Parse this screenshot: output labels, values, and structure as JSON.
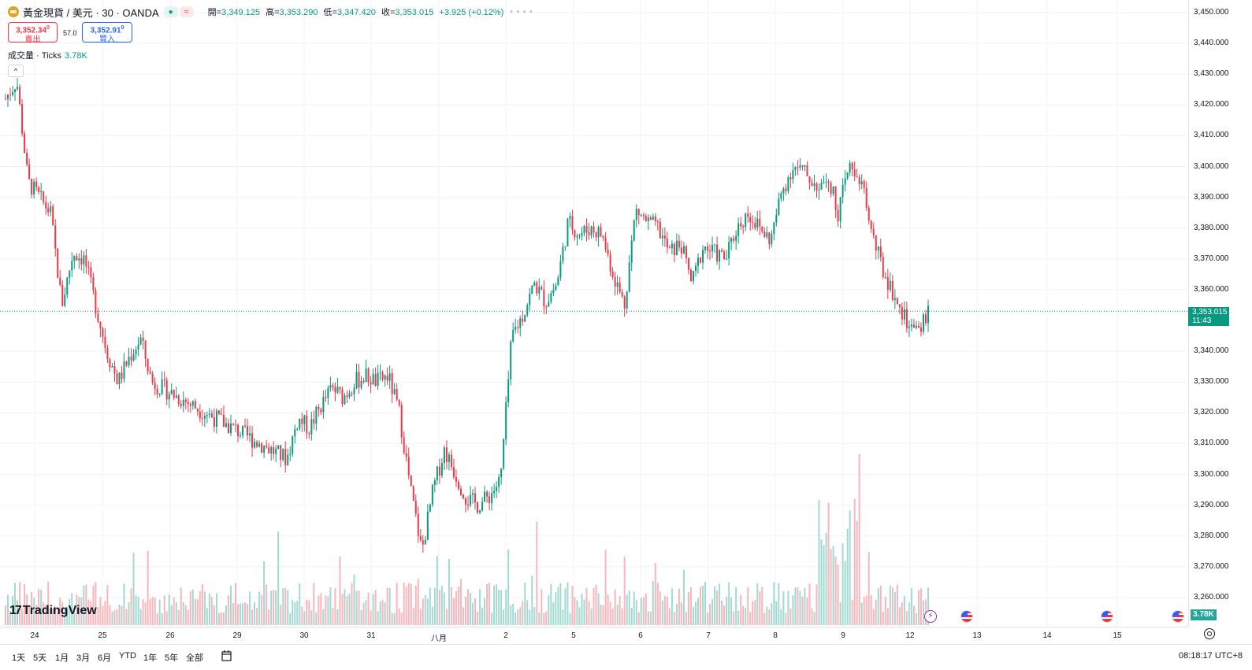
{
  "header": {
    "symbol": "黃金現貨 / 美元 · 30 · OANDA",
    "ohlc": [
      {
        "label": "開=",
        "value": "3,349.125"
      },
      {
        "label": "高=",
        "value": "3,353.290"
      },
      {
        "label": "低=",
        "value": "3,347.420"
      },
      {
        "label": "收=",
        "value": "3,353.015"
      }
    ],
    "change": "+3.925 (+0.12%)",
    "pill_green": "●",
    "pill_red": "≈",
    "more": "• • • •"
  },
  "trade": {
    "sell_price": "3,352.34",
    "sell_sup": "0",
    "sell_label": "賣出",
    "spread": "57.0",
    "buy_price": "3,352.91",
    "buy_sup": "0",
    "buy_label": "買入"
  },
  "volume": {
    "label": "成交量 · Ticks",
    "value": "3.78K",
    "collapse": "^"
  },
  "price_axis": {
    "labels": [
      "3,450.000",
      "3,440.000",
      "3,430.000",
      "3,420.000",
      "3,410.000",
      "3,400.000",
      "3,390.000",
      "3,380.000",
      "3,370.000",
      "3,360.000",
      "3,340.000",
      "3,330.000",
      "3,320.000",
      "3,310.000",
      "3,300.000",
      "3,290.000",
      "3,280.000",
      "3,270.000",
      "3,260.000"
    ],
    "last_price": "3,353.015",
    "countdown": "11:43",
    "volume_tag": "3.78K"
  },
  "time_axis": {
    "labels": [
      "24",
      "25",
      "26",
      "29",
      "30",
      "31",
      "八月",
      "2",
      "5",
      "6",
      "7",
      "8",
      "9",
      "12",
      "13",
      "14",
      "15"
    ]
  },
  "branding": {
    "logo_text": "TradingView",
    "logo_mark": "17"
  },
  "events": {
    "flash": "⚡"
  },
  "bottom_bar": {
    "ranges": [
      "1天",
      "5天",
      "1月",
      "3月",
      "6月",
      "YTD",
      "1年",
      "5年",
      "全部"
    ],
    "date_icon": "calendar-range-icon",
    "clock": "08:18:17 UTC+8"
  },
  "colors": {
    "up": "#089981",
    "down": "#f23645",
    "vol_up": "#a3d9d1",
    "vol_down": "#f7b6bc",
    "last_line": "#089981"
  },
  "chart_data": {
    "type": "candlestick",
    "x_labels": [
      "24",
      "25",
      "26",
      "29",
      "30",
      "31",
      "八月",
      "2",
      "5",
      "6",
      "7",
      "8",
      "9",
      "12"
    ],
    "y_range": [
      3253,
      3452
    ],
    "last_price": 3353.015,
    "close_path": [
      [
        24,
        3422
      ],
      [
        24.2,
        3428
      ],
      [
        24.4,
        3395
      ],
      [
        24.6,
        3390
      ],
      [
        24.8,
        3385
      ],
      [
        25,
        3355
      ],
      [
        25.2,
        3372
      ],
      [
        25.4,
        3370
      ],
      [
        25.6,
        3355
      ],
      [
        25.8,
        3340
      ],
      [
        26,
        3330
      ],
      [
        26.2,
        3338
      ],
      [
        26.4,
        3344
      ],
      [
        26.6,
        3330
      ],
      [
        29,
        3305
      ],
      [
        29.2,
        3318
      ],
      [
        29.4,
        3315
      ],
      [
        29.6,
        3322
      ],
      [
        29.8,
        3328
      ],
      [
        30,
        3325
      ],
      [
        30.2,
        3330
      ],
      [
        30.4,
        3332
      ],
      [
        30.6,
        3330
      ],
      [
        30.8,
        3332
      ],
      [
        31,
        3320
      ],
      [
        31.2,
        3295
      ],
      [
        31.4,
        3275
      ],
      [
        31.6,
        3295
      ],
      [
        31.8,
        3308
      ],
      [
        32,
        3300
      ],
      [
        32.2,
        3292
      ],
      [
        32.4,
        3290
      ],
      [
        32.6,
        3293
      ],
      [
        32.8,
        3298
      ],
      [
        33,
        3345
      ],
      [
        33.2,
        3352
      ],
      [
        33.4,
        3362
      ],
      [
        33.6,
        3356
      ],
      [
        33.8,
        3362
      ],
      [
        34,
        3382
      ],
      [
        34.2,
        3378
      ],
      [
        34.4,
        3380
      ],
      [
        34.6,
        3378
      ],
      [
        34.8,
        3365
      ],
      [
        35,
        3355
      ],
      [
        35.2,
        3386
      ],
      [
        35.4,
        3382
      ],
      [
        35.6,
        3380
      ],
      [
        35.8,
        3372
      ],
      [
        36,
        3375
      ],
      [
        36.2,
        3362
      ],
      [
        36.4,
        3374
      ],
      [
        36.6,
        3372
      ],
      [
        36.8,
        3370
      ],
      [
        37,
        3380
      ],
      [
        37.2,
        3385
      ],
      [
        37.4,
        3380
      ],
      [
        37.6,
        3376
      ],
      [
        37.8,
        3392
      ],
      [
        38,
        3400
      ],
      [
        38.2,
        3398
      ],
      [
        38.4,
        3394
      ],
      [
        38.6,
        3398
      ],
      [
        38.8,
        3385
      ],
      [
        39,
        3400
      ],
      [
        39.2,
        3396
      ],
      [
        39.4,
        3378
      ],
      [
        39.6,
        3366
      ],
      [
        39.8,
        3358
      ],
      [
        40,
        3350
      ],
      [
        40.2,
        3345
      ],
      [
        40.4,
        3353
      ]
    ],
    "volume_unit": "Ticks",
    "volume_last": 3780,
    "volume_peak_region": "Aug 8-9"
  }
}
